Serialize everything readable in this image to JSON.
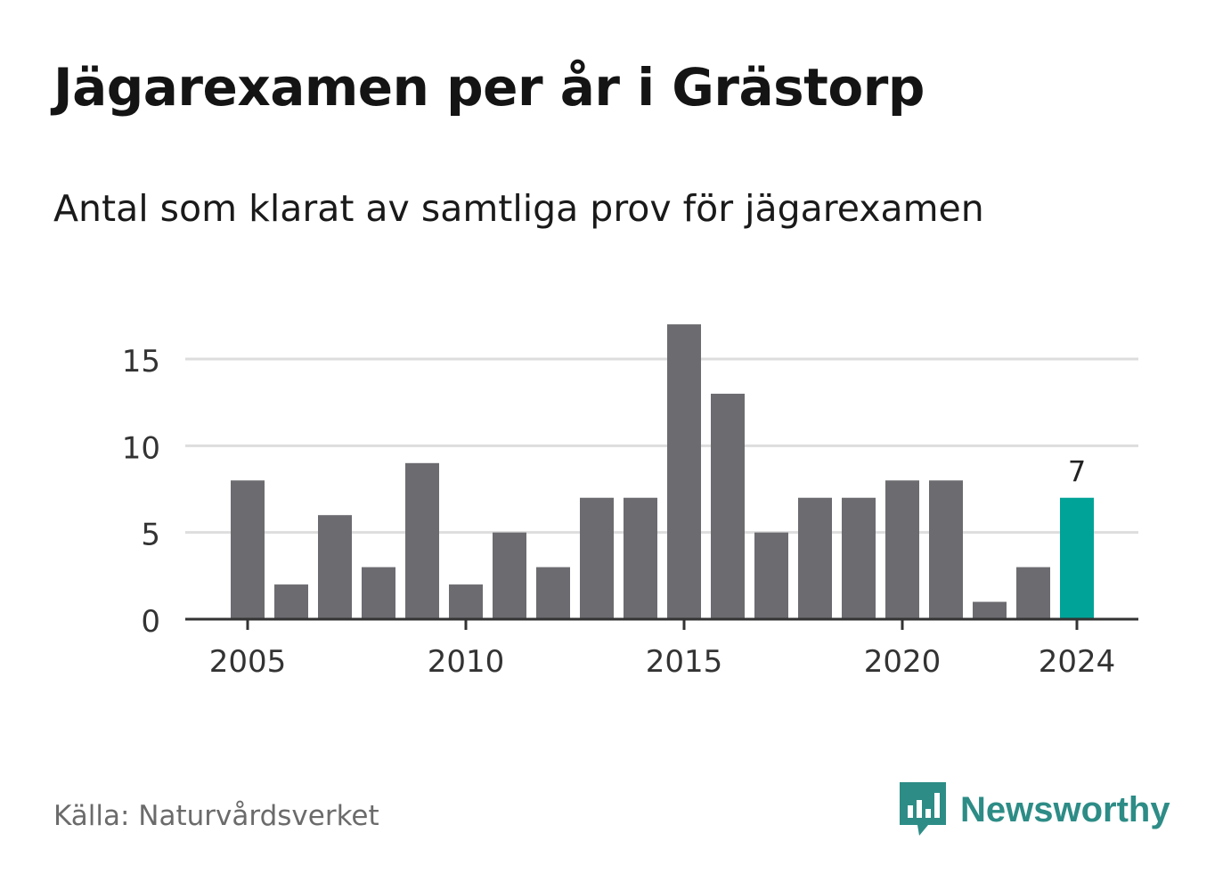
{
  "title": "Jägarexamen per år i Grästorp",
  "subtitle": "Antal som klarat av samtliga prov för jägarexamen",
  "source": "Källa: Naturvårdsverket",
  "brand": {
    "name": "Newsworthy",
    "icon": "newsworthy-chart-bubble-icon",
    "color": "#2d8c86"
  },
  "colors": {
    "bar": "#6c6b70",
    "highlight": "#00a398",
    "grid": "#dddddd",
    "axis": "#333333"
  },
  "chart_data": {
    "type": "bar",
    "title": "Jägarexamen per år i Grästorp",
    "subtitle": "Antal som klarat av samtliga prov för jägarexamen",
    "xlabel": "",
    "ylabel": "",
    "categories": [
      2005,
      2006,
      2007,
      2008,
      2009,
      2010,
      2011,
      2012,
      2013,
      2014,
      2015,
      2016,
      2017,
      2018,
      2019,
      2020,
      2021,
      2022,
      2023,
      2024
    ],
    "values": [
      8,
      2,
      6,
      3,
      9,
      2,
      5,
      3,
      7,
      7,
      17,
      13,
      5,
      7,
      7,
      8,
      8,
      1,
      3,
      7
    ],
    "highlight": {
      "category": 2024,
      "label": "7"
    },
    "ylim": [
      0,
      17
    ],
    "yticks": [
      0,
      5,
      10,
      15
    ],
    "xticks": [
      2005,
      2010,
      2015,
      2020,
      2024
    ],
    "grid": true,
    "legend": "none"
  }
}
